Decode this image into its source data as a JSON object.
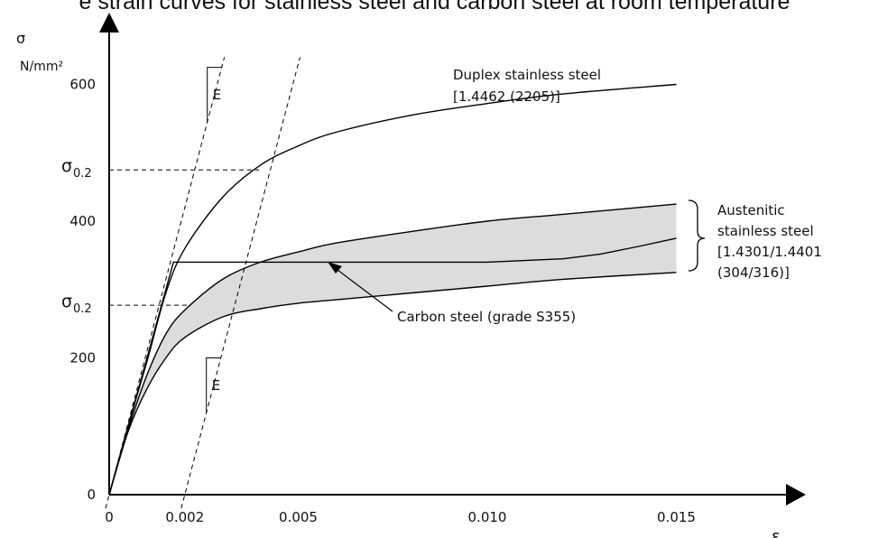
{
  "caption_fragment": "e strain curves for stainless steel and carbon steel at room temperature",
  "chart_data": {
    "type": "line",
    "title": "",
    "ylabel": "σ",
    "yunit": "N/mm²",
    "xlabel": "ε",
    "xlim": [
      0,
      0.017
    ],
    "ylim": [
      0,
      720
    ],
    "grid": false,
    "legend": "none (curves labeled directly)",
    "xticks": [
      {
        "value": 0,
        "label": "0"
      },
      {
        "value": 0.002,
        "label": "0.002"
      },
      {
        "value": 0.005,
        "label": "0.005"
      },
      {
        "value": 0.01,
        "label": "0.010"
      },
      {
        "value": 0.015,
        "label": "0.015"
      }
    ],
    "yticks": [
      {
        "value": 0,
        "label": "0"
      },
      {
        "value": 200,
        "label": "200"
      },
      {
        "value": 400,
        "label": "400"
      },
      {
        "value": 600,
        "label": "600"
      }
    ],
    "proof_stress_marks": [
      {
        "sigma_label": "σ",
        "sub_label": "0.2",
        "value": 475
      },
      {
        "sigma_label": "σ",
        "sub_label": "0.2",
        "value": 277
      }
    ],
    "series": [
      {
        "name": "Duplex stainless steel [1.4462 (2205)]",
        "x": [
          0,
          0.0005,
          0.001,
          0.0015,
          0.002,
          0.003,
          0.004,
          0.005,
          0.006,
          0.008,
          0.01,
          0.012,
          0.015
        ],
        "y": [
          0,
          100,
          195,
          295,
          360,
          435,
          482,
          510,
          530,
          555,
          572,
          586,
          600
        ]
      },
      {
        "name": "Carbon steel (grade S355)",
        "x": [
          0,
          0.0005,
          0.001,
          0.0017,
          0.004,
          0.008,
          0.01,
          0.012,
          0.013,
          0.014,
          0.015
        ],
        "y": [
          0,
          100,
          200,
          340,
          340,
          340,
          340,
          345,
          352,
          363,
          375
        ]
      },
      {
        "name": "Austenitic upper bound",
        "x": [
          0,
          0.0005,
          0.001,
          0.0015,
          0.002,
          0.003,
          0.004,
          0.005,
          0.006,
          0.008,
          0.01,
          0.012,
          0.015
        ],
        "y": [
          0,
          95,
          175,
          235,
          270,
          315,
          340,
          355,
          368,
          385,
          400,
          410,
          425
        ]
      },
      {
        "name": "Austenitic lower bound",
        "x": [
          0,
          0.0005,
          0.001,
          0.0015,
          0.002,
          0.003,
          0.004,
          0.005,
          0.006,
          0.008,
          0.01,
          0.012,
          0.015
        ],
        "y": [
          0,
          92,
          155,
          200,
          230,
          260,
          272,
          280,
          285,
          295,
          305,
          315,
          325
        ]
      }
    ],
    "modulus_lines": [
      {
        "x0": 0.0,
        "label": "E"
      },
      {
        "x0": 0.002,
        "label": "E"
      }
    ],
    "annotations": {
      "duplex_label": [
        "Duplex stainless steel",
        "[1.4462 (2205)]"
      ],
      "austenitic_label": [
        "Austenitic",
        "stainless steel",
        "[1.4301/1.4401",
        "(304/316)]"
      ],
      "carbon_label": "Carbon steel (grade S355)"
    }
  }
}
